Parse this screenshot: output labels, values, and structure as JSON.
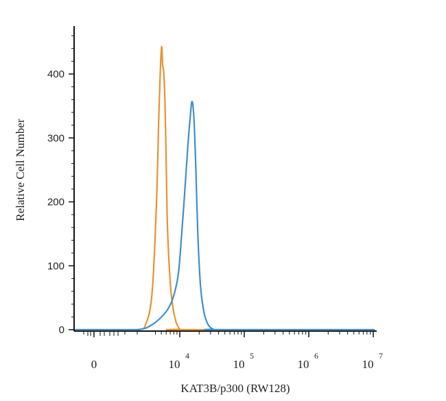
{
  "chart_data": {
    "type": "line",
    "title": "",
    "xlabel": "KAT3B/p300 (RW128)",
    "ylabel": "Relative Cell Number",
    "y_ticks": [
      "0",
      "100",
      "200",
      "300",
      "400"
    ],
    "y_tick_values": [
      0,
      100,
      200,
      300,
      400
    ],
    "ylim": [
      0,
      460
    ],
    "x_scale": "biexponential",
    "x_ticks": [
      {
        "base": "0",
        "exp": ""
      },
      {
        "base": "10",
        "exp": "4"
      },
      {
        "base": "10",
        "exp": "5"
      },
      {
        "base": "10",
        "exp": "6"
      },
      {
        "base": "10",
        "exp": "7"
      }
    ],
    "grid": false,
    "series": [
      {
        "color": "#e8922e",
        "x_decades": [
          2.6,
          3.3,
          3.45,
          3.55,
          3.62,
          3.66,
          3.7,
          3.72,
          3.74,
          3.76,
          3.78,
          3.8,
          3.84,
          3.88,
          3.93,
          3.97,
          4.0,
          4.02
        ],
        "y": [
          0,
          0,
          10,
          60,
          200,
          340,
          440,
          415,
          400,
          350,
          250,
          160,
          80,
          40,
          15,
          5,
          1,
          0
        ]
      },
      {
        "color": "#3a8fd0",
        "x_decades": [
          2.6,
          3.3,
          3.55,
          3.75,
          3.85,
          3.92,
          3.98,
          4.03,
          4.08,
          4.12,
          4.16,
          4.19,
          4.22,
          4.25,
          4.28,
          4.32,
          4.37,
          4.42,
          4.47,
          4.52,
          4.58
        ],
        "y": [
          0,
          0,
          8,
          25,
          40,
          60,
          90,
          150,
          220,
          280,
          330,
          357,
          330,
          250,
          150,
          70,
          30,
          12,
          4,
          1,
          0
        ]
      }
    ]
  }
}
